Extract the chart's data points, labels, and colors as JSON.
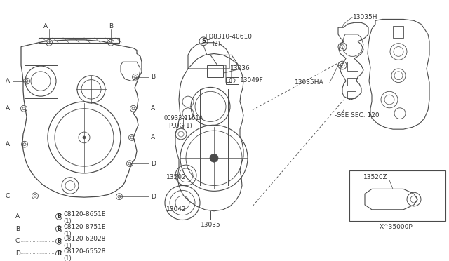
{
  "bg_color": "#ffffff",
  "fig_width": 6.4,
  "fig_height": 3.72,
  "dpi": 100,
  "line_color": "#4a4a4a",
  "text_color": "#333333",
  "legend": [
    {
      "lbl": "A",
      "part": "08120-8651E"
    },
    {
      "lbl": "B",
      "part": "08120-8751E"
    },
    {
      "lbl": "C",
      "part": "08120-62028"
    },
    {
      "lbl": "D",
      "part": "08120-65528"
    }
  ]
}
